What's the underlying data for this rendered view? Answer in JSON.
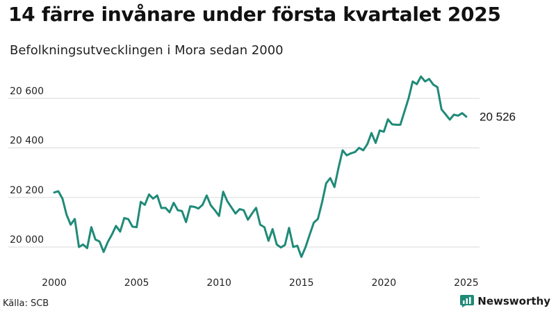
{
  "title": "14 färre invånare under första kvartalet 2025",
  "subtitle": "Befolkningsutvecklingen i Mora sedan 2000",
  "source": "Källa: SCB",
  "brand": {
    "name": "Newsworthy",
    "color": "#1f8a78",
    "icon": "newsworthy-logo-icon"
  },
  "chart_data": {
    "type": "line",
    "title": "14 färre invånare under första kvartalet 2025",
    "subtitle": "Befolkningsutvecklingen i Mora sedan 2000",
    "xlabel": "",
    "ylabel": "",
    "xlim": [
      2000,
      2025.3
    ],
    "ylim": [
      19930,
      20730
    ],
    "grid": true,
    "legend": "none",
    "line_color": "#1f8a78",
    "x_ticks": [
      2000,
      2005,
      2010,
      2015,
      2020,
      2025
    ],
    "x_tick_labels": [
      "2000",
      "2005",
      "2010",
      "2015",
      "2020",
      "2025"
    ],
    "y_ticks": [
      20000,
      20200,
      20400,
      20600
    ],
    "y_tick_labels": [
      "20 000",
      "20 200",
      "20 400",
      "20 600"
    ],
    "end_label": "20 526",
    "series": [
      {
        "x": [
          2000.0,
          2000.25,
          2000.5,
          2000.75,
          2001.0,
          2001.25,
          2001.5,
          2001.75,
          2002.0,
          2002.25,
          2002.5,
          2002.75,
          2003.0,
          2003.25,
          2003.5,
          2003.75,
          2004.0,
          2004.25,
          2004.5,
          2004.75,
          2005.0,
          2005.25,
          2005.5,
          2005.75,
          2006.0,
          2006.25,
          2006.5,
          2006.75,
          2007.0,
          2007.25,
          2007.5,
          2007.75,
          2008.0,
          2008.25,
          2008.5,
          2008.75,
          2009.0,
          2009.25,
          2009.5,
          2009.75,
          2010.0,
          2010.25,
          2010.5,
          2010.75,
          2011.0,
          2011.25,
          2011.5,
          2011.75,
          2012.0,
          2012.25,
          2012.5,
          2012.75,
          2013.0,
          2013.25,
          2013.5,
          2013.75,
          2014.0,
          2014.25,
          2014.5,
          2014.75,
          2015.0,
          2015.25,
          2015.5,
          2015.75,
          2016.0,
          2016.25,
          2016.5,
          2016.75,
          2017.0,
          2017.25,
          2017.5,
          2017.75,
          2018.0,
          2018.25,
          2018.5,
          2018.75,
          2019.0,
          2019.25,
          2019.5,
          2019.75,
          2020.0,
          2020.25,
          2020.5,
          2020.75,
          2021.0,
          2021.25,
          2021.5,
          2021.75,
          2022.0,
          2022.25,
          2022.5,
          2022.75,
          2023.0,
          2023.25,
          2023.5,
          2023.75,
          2024.0,
          2024.25,
          2024.5,
          2024.75,
          2025.0
        ],
        "values": [
          20220,
          20225,
          20195,
          20130,
          20090,
          20113,
          20000,
          20010,
          19995,
          20080,
          20030,
          20022,
          19980,
          20020,
          20050,
          20085,
          20062,
          20117,
          20112,
          20082,
          20080,
          20182,
          20170,
          20212,
          20195,
          20208,
          20157,
          20158,
          20140,
          20178,
          20148,
          20145,
          20100,
          20164,
          20162,
          20155,
          20170,
          20208,
          20168,
          20148,
          20125,
          20223,
          20185,
          20160,
          20135,
          20153,
          20148,
          20110,
          20135,
          20158,
          20090,
          20080,
          20025,
          20072,
          20010,
          19998,
          20008,
          20077,
          20000,
          20005,
          19960,
          20000,
          20050,
          20098,
          20113,
          20180,
          20257,
          20278,
          20242,
          20320,
          20390,
          20370,
          20378,
          20383,
          20400,
          20390,
          20415,
          20460,
          20420,
          20470,
          20465,
          20515,
          20495,
          20493,
          20493,
          20547,
          20600,
          20668,
          20657,
          20688,
          20668,
          20678,
          20655,
          20645,
          20555,
          20535,
          20514,
          20534,
          20530,
          20540,
          20526
        ]
      }
    ]
  }
}
